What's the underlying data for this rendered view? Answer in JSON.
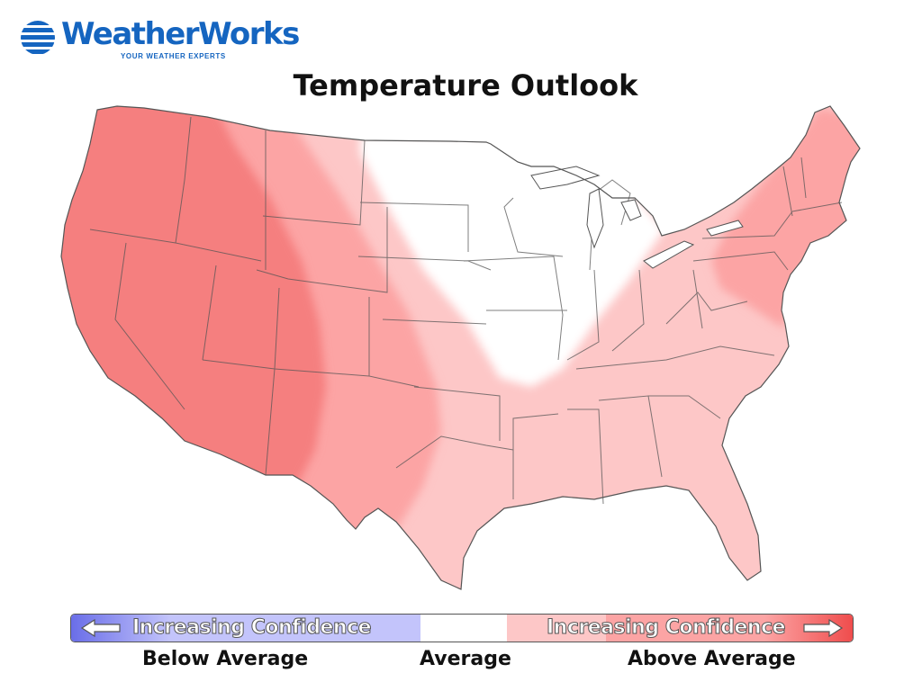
{
  "logo": {
    "brand": "WeatherWorks",
    "tagline": "YOUR WEATHER EXPERTS"
  },
  "map": {
    "title": "Temperature Outlook",
    "region": "Contiguous United States",
    "zones": [
      {
        "category": "above-average-high-confidence",
        "color": "#f57f7f",
        "states": [
          "Washington",
          "Oregon",
          "California",
          "Idaho",
          "Nevada",
          "Utah",
          "Arizona"
        ]
      },
      {
        "category": "above-average-medium-confidence",
        "color": "#fca4a4",
        "states": [
          "Montana (west)",
          "Wyoming",
          "Colorado",
          "New Mexico",
          "Texas (west)",
          "Pennsylvania",
          "New York",
          "New England",
          "New Jersey"
        ]
      },
      {
        "category": "above-average-low-confidence",
        "color": "#fdc7c7",
        "states": [
          "Montana (east)",
          "Nebraska",
          "Kansas",
          "Oklahoma",
          "Texas (east)",
          "Gulf Coast",
          "Southeast",
          "Ohio Valley",
          "Mid-Atlantic"
        ]
      },
      {
        "category": "average",
        "color": "#ffffff",
        "states": [
          "North Dakota",
          "South Dakota",
          "Minnesota",
          "Iowa",
          "Missouri",
          "Wisconsin",
          "Illinois",
          "Michigan",
          "Indiana"
        ]
      }
    ]
  },
  "legend": {
    "left_text": "Increasing Confidence",
    "right_text": "Increasing Confidence",
    "colors": {
      "below_strong": "#6a6ee8",
      "below_weak": "#c3c4fb",
      "average": "#ffffff",
      "above_weak": "#fdc7c7",
      "above_medium": "#fca4a4",
      "above_strong": "#ef4b4b"
    },
    "labels": {
      "below": "Below Average",
      "average": "Average",
      "above": "Above Average"
    }
  }
}
